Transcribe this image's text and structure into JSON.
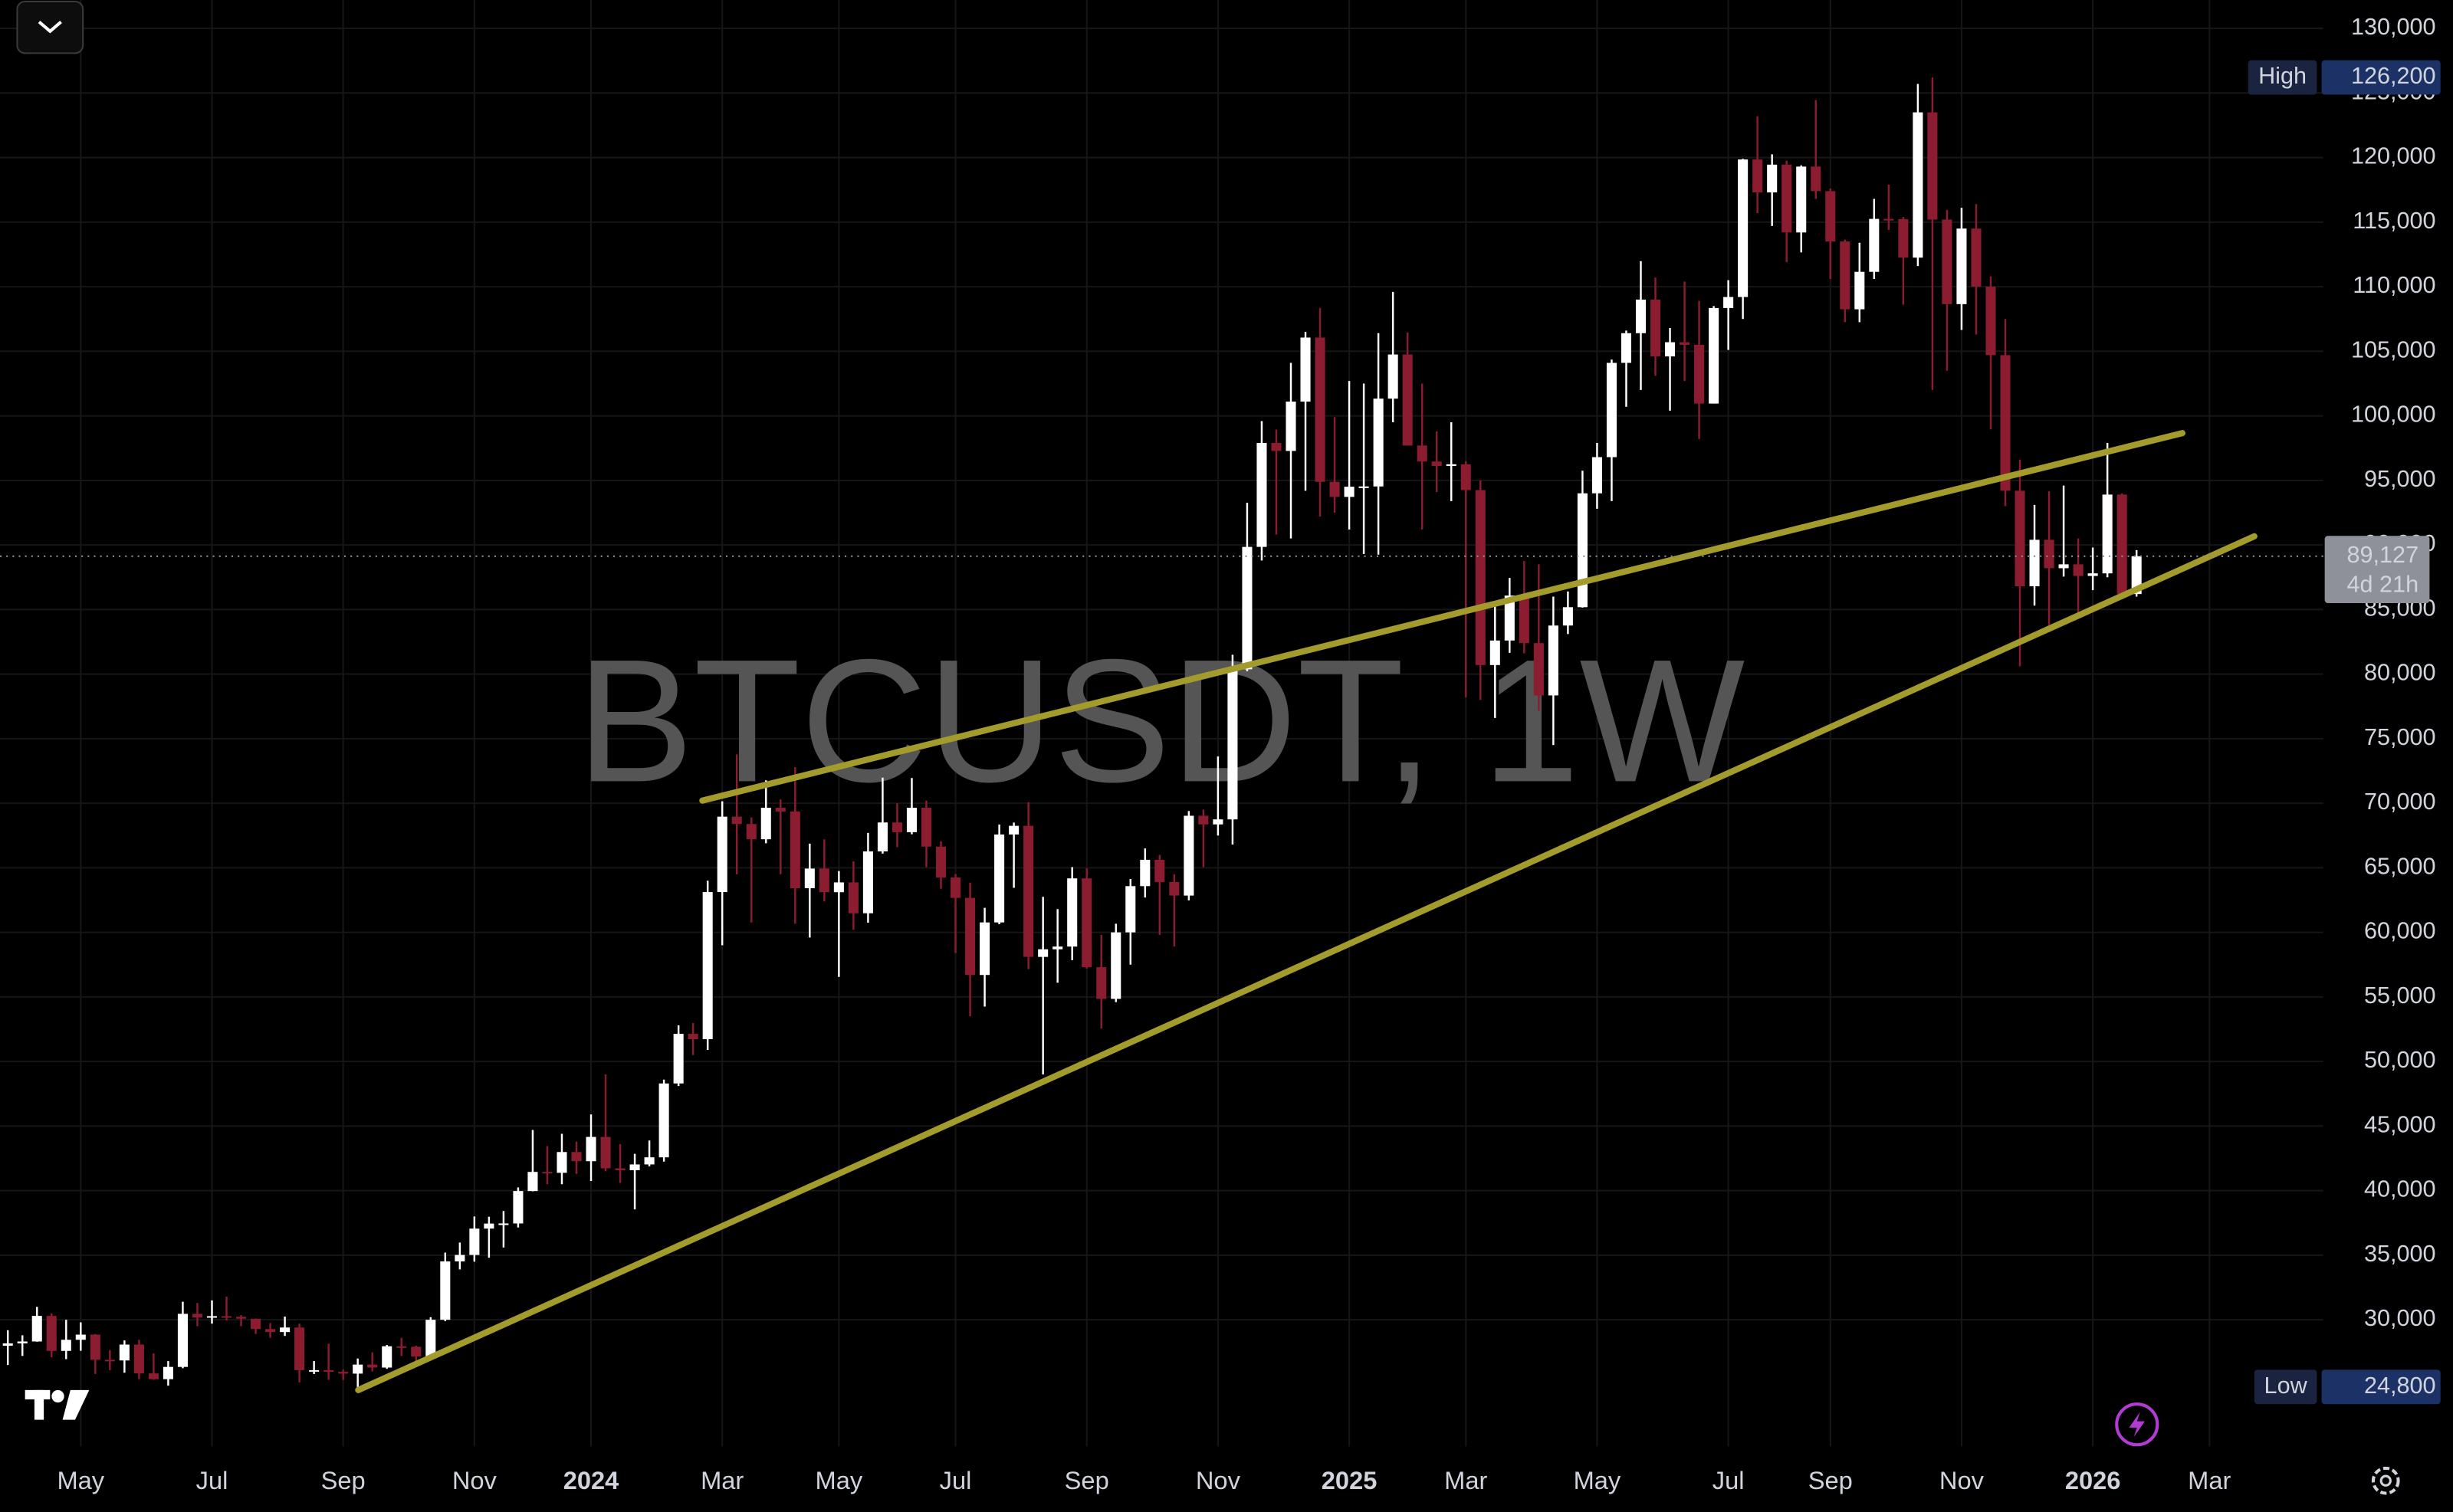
{
  "chart_data": {
    "type": "candlestick",
    "title": "BTCUSDT, 1W",
    "categories": [
      null,
      null,
      null,
      null,
      null,
      "May",
      null,
      null,
      null,
      null,
      null,
      null,
      null,
      null,
      "Jul",
      null,
      null,
      null,
      null,
      null,
      null,
      null,
      null,
      "Sep",
      null,
      null,
      null,
      null,
      null,
      null,
      null,
      null,
      "Nov",
      null,
      null,
      null,
      null,
      null,
      null,
      null,
      "2024",
      null,
      null,
      null,
      null,
      null,
      null,
      null,
      null,
      "Mar",
      null,
      null,
      null,
      null,
      null,
      null,
      null,
      "May",
      null,
      null,
      null,
      null,
      null,
      null,
      null,
      "Jul",
      null,
      null,
      null,
      null,
      null,
      null,
      null,
      null,
      "Sep",
      null,
      null,
      null,
      null,
      null,
      null,
      null,
      null,
      "Nov",
      null,
      null,
      null,
      null,
      null,
      null,
      null,
      null,
      "2025",
      null,
      null,
      null,
      null,
      null,
      null,
      null,
      "Mar",
      null,
      null,
      null,
      null,
      null,
      null,
      null,
      null,
      "May",
      null,
      null,
      null,
      null,
      null,
      null,
      null,
      null,
      "Jul",
      null,
      null,
      null,
      null,
      null,
      null,
      "Sep",
      null,
      null,
      null,
      null,
      null,
      null,
      null,
      null,
      "Nov",
      null,
      null,
      null,
      null,
      null,
      null,
      null,
      null,
      "2026",
      null,
      null,
      null,
      null,
      null,
      null,
      null,
      "Mar",
      null,
      null,
      null,
      null
    ],
    "open": [
      27990,
      28170,
      28320,
      30300,
      27590,
      28450,
      28850,
      26900,
      26850,
      28080,
      25850,
      25400,
      26350,
      30460,
      30170,
      30280,
      30230,
      30080,
      29280,
      29050,
      29400,
      26100,
      26100,
      25970,
      25830,
      26530,
      26300,
      27950,
      27910,
      27150,
      30000,
      34520,
      35020,
      37060,
      37450,
      37460,
      39970,
      41450,
      41380,
      42990,
      42280,
      44160,
      41730,
      41580,
      42030,
      42580,
      48300,
      52140,
      51730,
      63120,
      68960,
      68390,
      67210,
      69650,
      69360,
      63420,
      64940,
      63110,
      63870,
      61480,
      66270,
      68510,
      67760,
      69650,
      66640,
      64250,
      62670,
      56700,
      60770,
      67580,
      68250,
      58100,
      58690,
      58900,
      64180,
      57300,
      54850,
      60000,
      63580,
      65620,
      63900,
      62850,
      69030,
      68360,
      68750,
      80370,
      89850,
      97900,
      97280,
      101100,
      106060,
      94890,
      93720,
      94510,
      94530,
      101330,
      104750,
      97700,
      96460,
      96120,
      96250,
      94250,
      80700,
      82600,
      86080,
      82400,
      78350,
      83760,
      85180,
      94000,
      96800,
      104100,
      106400,
      109000,
      104600,
      105700,
      105500,
      100950,
      108350,
      109200,
      119850,
      117300,
      119450,
      114200,
      119300,
      117400,
      113500,
      108250,
      111150,
      115250,
      115230,
      112250,
      123500,
      115200,
      108650,
      114500,
      110000,
      104700,
      94200,
      86800,
      90400,
      88200,
      88500,
      87600,
      87800,
      93900,
      86200,
      null,
      null,
      null,
      null,
      null,
      null,
      null,
      null,
      null
    ],
    "high": [
      29190,
      28800,
      31000,
      30500,
      30000,
      29800,
      28900,
      27650,
      28400,
      28450,
      27400,
      26800,
      31400,
      31300,
      31500,
      31800,
      30350,
      30100,
      29750,
      30250,
      29700,
      26800,
      28150,
      26150,
      27000,
      27480,
      28050,
      28600,
      28000,
      30200,
      35200,
      35980,
      38000,
      37980,
      38420,
      40250,
      44700,
      43450,
      44400,
      43800,
      45900,
      49000,
      43600,
      42850,
      43880,
      48600,
      52800,
      52980,
      64000,
      70150,
      73780,
      68900,
      71770,
      70300,
      72800,
      66870,
      67200,
      64750,
      65500,
      67700,
      71980,
      70000,
      71950,
      70200,
      67050,
      64520,
      63850,
      61900,
      68350,
      68500,
      70080,
      62750,
      61800,
      65050,
      64960,
      59800,
      60670,
      64130,
      66500,
      66000,
      64500,
      69400,
      69500,
      73620,
      81500,
      93270,
      99590,
      98930,
      104100,
      106500,
      108350,
      99900,
      102700,
      102500,
      106400,
      109600,
      106450,
      102500,
      98800,
      99500,
      96500,
      95000,
      85300,
      87450,
      88750,
      88500,
      86000,
      86400,
      95750,
      97900,
      104350,
      106600,
      111980,
      110700,
      106800,
      110400,
      108900,
      108500,
      110500,
      119900,
      123200,
      120250,
      119750,
      119400,
      124450,
      117600,
      113650,
      113400,
      116800,
      117900,
      115400,
      125700,
      126200,
      115950,
      116100,
      116400,
      110800,
      107500,
      96600,
      93100,
      94150,
      94600,
      90500,
      89800,
      97900,
      94000,
      89600,
      null,
      null,
      null,
      null,
      null,
      null,
      null,
      null,
      null
    ],
    "low": [
      26500,
      27200,
      28300,
      27100,
      26950,
      27600,
      25800,
      26100,
      25900,
      25400,
      25350,
      24900,
      26250,
      29500,
      29700,
      29950,
      29500,
      28900,
      28600,
      28750,
      25150,
      25800,
      25350,
      25330,
      24800,
      26000,
      26200,
      27200,
      26550,
      27000,
      29900,
      33900,
      34500,
      34800,
      35600,
      37150,
      39950,
      40500,
      40500,
      41300,
      40750,
      41500,
      40600,
      38550,
      41880,
      42250,
      48100,
      50500,
      50900,
      59000,
      64500,
      60770,
      66900,
      64500,
      60660,
      59600,
      62400,
      56550,
      60200,
      60750,
      66100,
      66600,
      67600,
      65050,
      63380,
      58400,
      53500,
      54250,
      60630,
      63450,
      57150,
      49000,
      56100,
      57850,
      57200,
      52550,
      54600,
      57500,
      62700,
      59800,
      58900,
      62480,
      65050,
      67500,
      66800,
      80220,
      88800,
      90800,
      90500,
      94200,
      92200,
      92500,
      91200,
      89300,
      89250,
      99500,
      97700,
      91200,
      94100,
      93400,
      78200,
      78000,
      76600,
      81650,
      81600,
      77150,
      74500,
      83100,
      85150,
      92800,
      93400,
      100700,
      102000,
      103100,
      100400,
      102700,
      98200,
      100950,
      105100,
      107500,
      115700,
      114700,
      111900,
      112650,
      116800,
      110600,
      107250,
      107250,
      110600,
      114400,
      108600,
      111600,
      102000,
      103500,
      106650,
      106300,
      98950,
      93000,
      80600,
      85300,
      83800,
      87550,
      84500,
      86500,
      87500,
      85800,
      86000,
      null,
      null,
      null,
      null,
      null,
      null,
      null,
      null,
      null
    ],
    "close": [
      28170,
      28320,
      30300,
      27590,
      28450,
      28850,
      26900,
      26850,
      28080,
      25850,
      25400,
      26350,
      30460,
      30170,
      30280,
      30230,
      30080,
      29280,
      29050,
      29400,
      26100,
      26100,
      25970,
      25830,
      26530,
      26300,
      27950,
      27910,
      27150,
      30000,
      34520,
      35020,
      37060,
      37450,
      37460,
      39970,
      41450,
      41380,
      42990,
      42280,
      44160,
      41730,
      41580,
      42030,
      42580,
      48300,
      52140,
      51730,
      63120,
      68960,
      68390,
      67210,
      69650,
      69360,
      63420,
      64940,
      63110,
      63870,
      61480,
      66270,
      68510,
      67760,
      69650,
      66640,
      64250,
      62670,
      56700,
      60770,
      67580,
      68250,
      58100,
      58690,
      58900,
      64180,
      57300,
      54850,
      60000,
      63580,
      65620,
      63900,
      62850,
      69030,
      68360,
      68750,
      80370,
      89850,
      97900,
      97280,
      101100,
      106060,
      94890,
      93720,
      94510,
      94530,
      101330,
      104750,
      97700,
      96460,
      96120,
      96250,
      94250,
      80700,
      82600,
      86080,
      82400,
      78350,
      83760,
      85180,
      94000,
      96800,
      104100,
      106400,
      109000,
      104600,
      105700,
      105500,
      100950,
      108350,
      109200,
      119850,
      117300,
      119450,
      114200,
      119300,
      117400,
      113500,
      108250,
      111150,
      115250,
      115230,
      112250,
      123500,
      115200,
      108650,
      114500,
      110000,
      104700,
      94200,
      86800,
      90400,
      88200,
      88500,
      87600,
      87800,
      93900,
      86200,
      89127,
      null,
      null,
      null,
      null,
      null,
      null,
      null,
      null,
      null
    ],
    "up_color": "#ffffff",
    "down_color": "#8c1c30",
    "ylim": [
      20200,
      132200
    ],
    "yticks": [
      {
        "value": 30000,
        "label": "30,000"
      },
      {
        "value": 35000,
        "label": "35,000"
      },
      {
        "value": 40000,
        "label": "40,000"
      },
      {
        "value": 45000,
        "label": "45,000"
      },
      {
        "value": 50000,
        "label": "50,000"
      },
      {
        "value": 55000,
        "label": "55,000"
      },
      {
        "value": 60000,
        "label": "60,000"
      },
      {
        "value": 65000,
        "label": "65,000"
      },
      {
        "value": 70000,
        "label": "70,000"
      },
      {
        "value": 75000,
        "label": "75,000"
      },
      {
        "value": 80000,
        "label": "80,000"
      },
      {
        "value": 85000,
        "label": "85,000"
      },
      {
        "value": 90000,
        "label": "90,000"
      },
      {
        "value": 95000,
        "label": "95,000"
      },
      {
        "value": 100000,
        "label": "100,000"
      },
      {
        "value": 105000,
        "label": "105,000"
      },
      {
        "value": 110000,
        "label": "110,000"
      },
      {
        "value": 115000,
        "label": "115,000"
      },
      {
        "value": 120000,
        "label": "120,000"
      },
      {
        "value": 125000,
        "label": "125,000"
      },
      {
        "value": 130000,
        "label": "130,000"
      }
    ],
    "grid": true,
    "price_line": {
      "value": 89127,
      "label": "89,127",
      "countdown": "4d 21h"
    },
    "high_marker": {
      "text": "High",
      "value": 126200,
      "value_label": "126,200"
    },
    "low_marker": {
      "text": "Low",
      "value": 24800,
      "value_label": "24,800"
    }
  }
}
